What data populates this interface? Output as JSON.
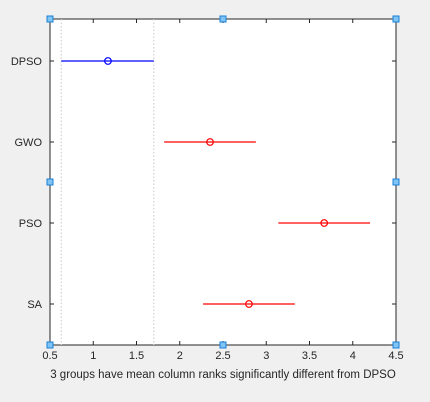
{
  "chart_data": {
    "type": "scatter",
    "title": "",
    "xlabel": "3 groups have mean column ranks significantly different from DPSO",
    "ylabel": "",
    "xlim": [
      0.5,
      4.5
    ],
    "xticks": [
      0.5,
      1,
      1.5,
      2,
      2.5,
      3,
      3.5,
      4,
      4.5
    ],
    "xtick_labels": [
      "0.5",
      "1",
      "1.5",
      "2",
      "2.5",
      "3",
      "3.5",
      "4",
      "4.5"
    ],
    "grid": false,
    "groups": [
      {
        "name": "DPSO",
        "mean": 1.17,
        "lower": 0.63,
        "upper": 1.7,
        "color": "#0000ff"
      },
      {
        "name": "GWO",
        "mean": 2.35,
        "lower": 1.82,
        "upper": 2.88,
        "color": "#ff0000"
      },
      {
        "name": "PSO",
        "mean": 3.67,
        "lower": 3.14,
        "upper": 4.2,
        "color": "#ff0000"
      },
      {
        "name": "SA",
        "mean": 2.8,
        "lower": 2.27,
        "upper": 3.33,
        "color": "#ff0000"
      }
    ],
    "reference_lines": [
      0.63,
      1.7
    ],
    "colors": {
      "axes": "#262626",
      "reference": "#c8c8c8",
      "background": "#ffffff",
      "figure": "#f0f0f0",
      "handle": "#1a7fd4"
    }
  }
}
